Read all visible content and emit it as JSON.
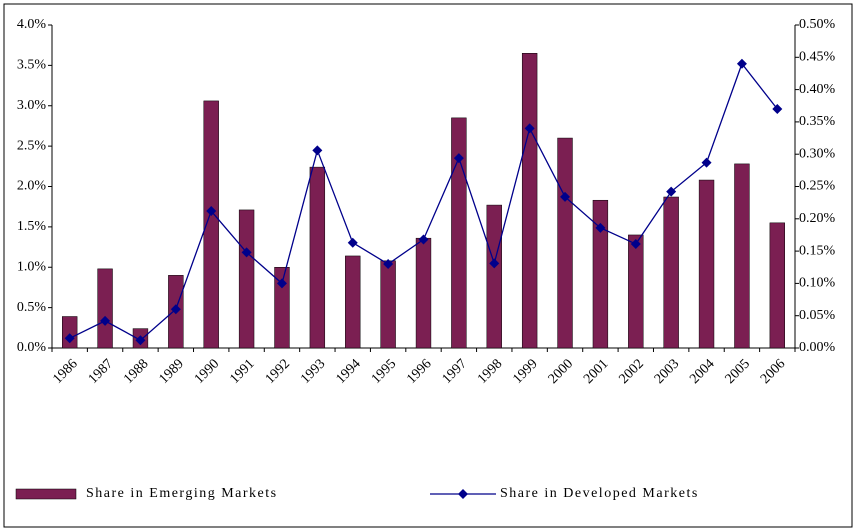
{
  "chart_data": {
    "type": "bar_line",
    "categories": [
      "1986",
      "1987",
      "1988",
      "1989",
      "1990",
      "1991",
      "1992",
      "1993",
      "1994",
      "1995",
      "1996",
      "1997",
      "1998",
      "1999",
      "2000",
      "2001",
      "2002",
      "2003",
      "2004",
      "2005",
      "2006"
    ],
    "series": [
      {
        "name": "Share in Emerging Markets",
        "color": "#7b1f52",
        "type": "bar",
        "axis": "y",
        "values": [
          0.39,
          0.98,
          0.24,
          0.9,
          3.06,
          1.71,
          1.0,
          2.24,
          1.14,
          1.08,
          1.36,
          2.85,
          1.77,
          3.65,
          2.6,
          1.83,
          1.4,
          1.87,
          2.08,
          2.28,
          1.55
        ]
      },
      {
        "name": "Share in Developed Markets",
        "color": "#00008b",
        "type": "line",
        "axis": "y2",
        "values": [
          0.015,
          0.042,
          0.012,
          0.06,
          0.212,
          0.148,
          0.1,
          0.306,
          0.163,
          0.13,
          0.168,
          0.294,
          0.131,
          0.34,
          0.234,
          0.186,
          0.161,
          0.242,
          0.287,
          0.44,
          0.37
        ]
      }
    ],
    "ylim": [
      0,
      4
    ],
    "yticks": [
      {
        "value": 0,
        "label": "0.0%"
      },
      {
        "value": 0.5,
        "label": "0.5%"
      },
      {
        "value": 1,
        "label": "1.0%"
      },
      {
        "value": 1.5,
        "label": "1.5%"
      },
      {
        "value": 2,
        "label": "2.0%"
      },
      {
        "value": 2.5,
        "label": "2.5%"
      },
      {
        "value": 3,
        "label": "3.0%"
      },
      {
        "value": 3.5,
        "label": "3.5%"
      },
      {
        "value": 4,
        "label": "4.0%"
      }
    ],
    "y2lim": [
      0,
      0.5
    ],
    "y2ticks": [
      {
        "value": 0,
        "label": "0.00%"
      },
      {
        "value": 0.05,
        "label": "0.05%"
      },
      {
        "value": 0.1,
        "label": "0.10%"
      },
      {
        "value": 0.15,
        "label": "0.15%"
      },
      {
        "value": 0.2,
        "label": "0.20%"
      },
      {
        "value": 0.25,
        "label": "0.25%"
      },
      {
        "value": 0.3,
        "label": "0.30%"
      },
      {
        "value": 0.35,
        "label": "0.35%"
      },
      {
        "value": 0.4,
        "label": "0.40%"
      },
      {
        "value": 0.45,
        "label": "0.45%"
      },
      {
        "value": 0.5,
        "label": "0.50%"
      }
    ],
    "legend": "bottom",
    "grid": false
  }
}
